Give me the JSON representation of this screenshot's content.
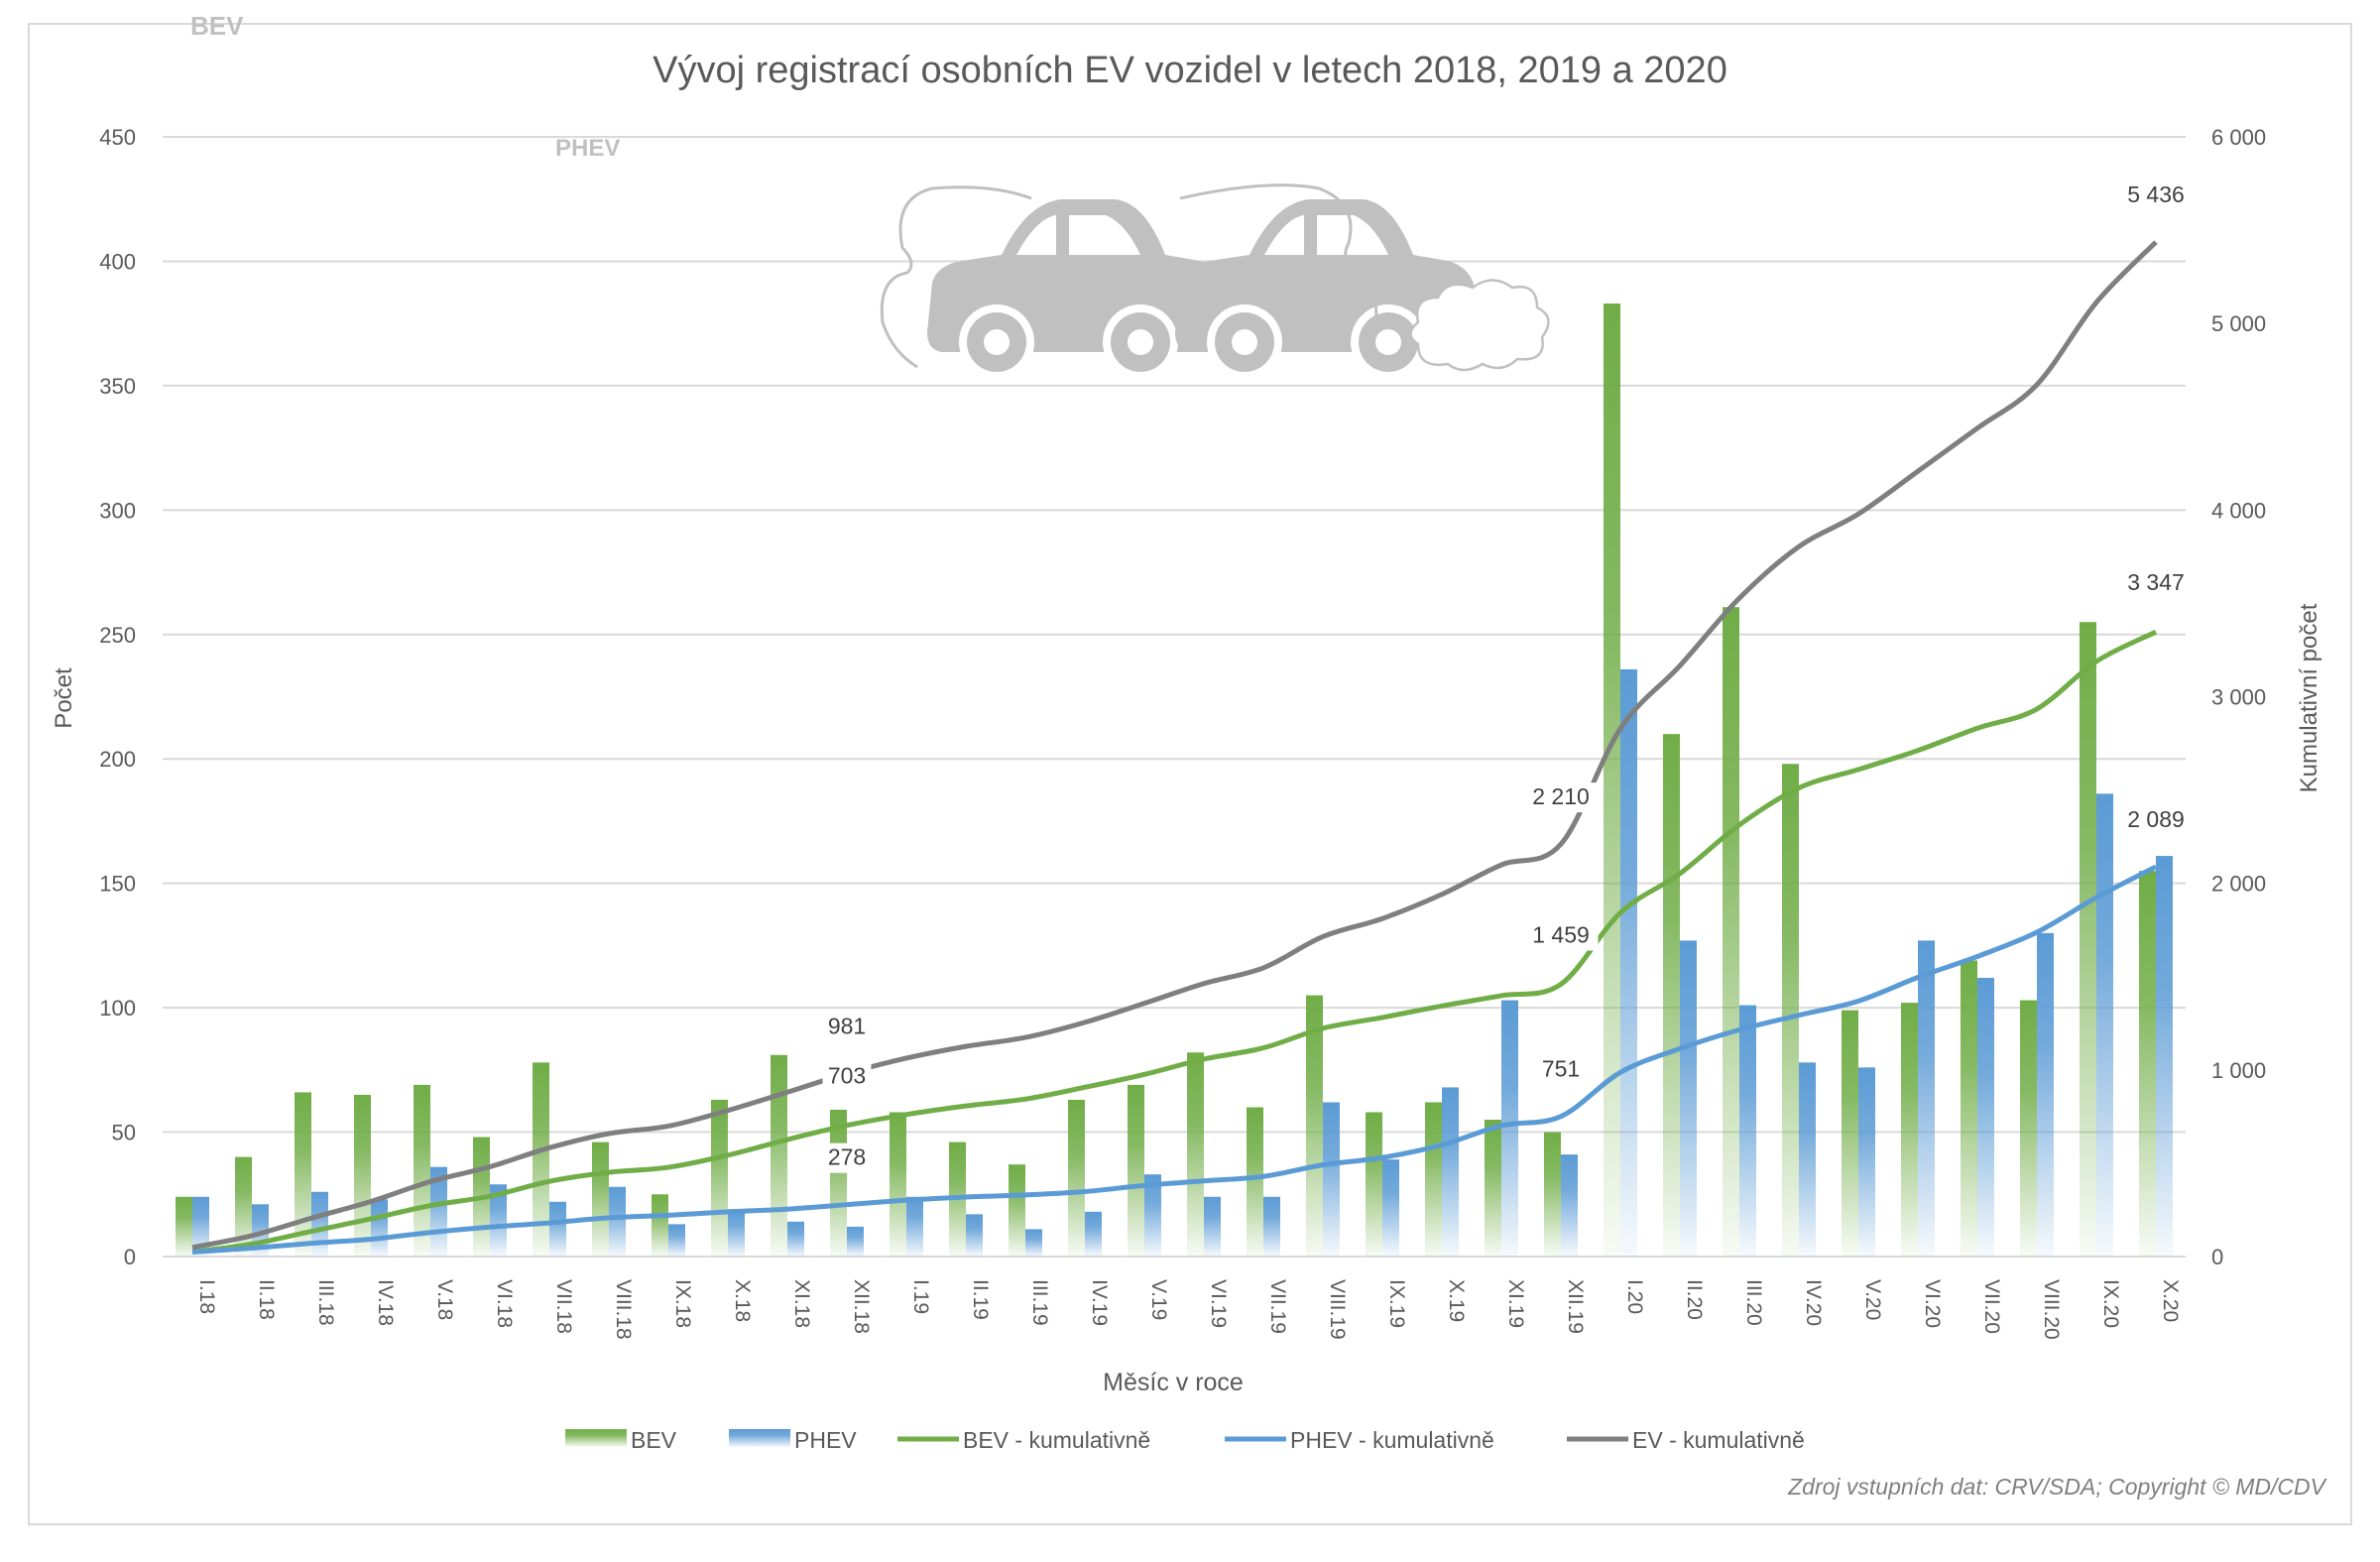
{
  "chart_data": {
    "type": "bar+line",
    "title": "Vývoj registrací osobních EV vozidel v letech 2018, 2019 a 2020",
    "xlabel": "Měsíc v roce",
    "ylabel": "Počet",
    "y2label": "Kumulativní počet",
    "ylim": [
      0,
      450
    ],
    "y2lim": [
      0,
      6000
    ],
    "yticks": [
      "0",
      "50",
      "100",
      "150",
      "200",
      "250",
      "300",
      "350",
      "400",
      "450"
    ],
    "y2ticks": [
      "0",
      "1 000",
      "2 000",
      "3 000",
      "4 000",
      "5 000",
      "6 000"
    ],
    "grid": true,
    "legend_position": "bottom",
    "categories": [
      "I.18",
      "II.18",
      "III.18",
      "IV.18",
      "V.18",
      "VI.18",
      "VII.18",
      "VIII.18",
      "IX.18",
      "X.18",
      "XI.18",
      "XII.18",
      "I.19",
      "II.19",
      "III.19",
      "IV.19",
      "V.19",
      "VI.19",
      "VII.19",
      "VIII.19",
      "IX.19",
      "X.19",
      "XI.19",
      "XII.19",
      "I.20",
      "II.20",
      "III.20",
      "IV.20",
      "V.20",
      "VI.20",
      "VII.20",
      "VIII.20",
      "IX.20",
      "X.20"
    ],
    "series": [
      {
        "name": "BEV",
        "kind": "bar",
        "axis": "left",
        "color": "#70ad47",
        "values": [
          24,
          40,
          66,
          65,
          69,
          48,
          78,
          46,
          25,
          63,
          81,
          59,
          58,
          46,
          37,
          63,
          69,
          82,
          60,
          105,
          58,
          62,
          55,
          50,
          383,
          210,
          261,
          198,
          99,
          102,
          119,
          103,
          255,
          155
        ]
      },
      {
        "name": "PHEV",
        "kind": "bar",
        "axis": "left",
        "color": "#5b9bd5",
        "values": [
          24,
          21,
          26,
          23,
          36,
          29,
          22,
          28,
          13,
          19,
          14,
          12,
          24,
          17,
          11,
          18,
          33,
          24,
          24,
          62,
          39,
          68,
          103,
          41,
          236,
          127,
          101,
          78,
          76,
          127,
          112,
          130,
          186,
          161
        ]
      },
      {
        "name": "BEV - kumulativně",
        "kind": "line",
        "axis": "right",
        "color": "#70ad47",
        "values": [
          25,
          67,
          135,
          202,
          273,
          323,
          403,
          451,
          478,
          543,
          627,
          703,
          761,
          807,
          844,
          907,
          976,
          1058,
          1118,
          1223,
          1281,
          1343,
          1398,
          1459,
          1842,
          2052,
          2313,
          2511,
          2610,
          2712,
          2831,
          2934,
          3189,
          3347
        ],
        "labels": {
          "11": "703",
          "23": "1 459",
          "33": "3 347"
        }
      },
      {
        "name": "PHEV - kumulativně",
        "kind": "line",
        "axis": "right",
        "color": "#5b9bd5",
        "values": [
          24,
          45,
          71,
          93,
          129,
          158,
          180,
          208,
          221,
          240,
          254,
          278,
          302,
          319,
          330,
          348,
          381,
          405,
          429,
          491,
          530,
          598,
          701,
          751,
          987,
          1114,
          1215,
          1293,
          1369,
          1496,
          1608,
          1738,
          1924,
          2089
        ],
        "labels": {
          "11": "278",
          "23": "751",
          "33": "2 089"
        }
      },
      {
        "name": "EV - kumulativně",
        "kind": "line",
        "axis": "right",
        "color": "#7f7f7f",
        "values": [
          49,
          112,
          206,
          295,
          402,
          481,
          583,
          659,
          699,
          783,
          881,
          981,
          1063,
          1126,
          1174,
          1255,
          1357,
          1463,
          1547,
          1714,
          1811,
          1941,
          2099,
          2210,
          2829,
          3166,
          3528,
          3804,
          3979,
          4208,
          4439,
          4672,
          5113,
          5436
        ],
        "labels": {
          "11": "981",
          "23": "2 210",
          "33": "5 436"
        }
      }
    ]
  },
  "logo": {
    "bev_text": "BEV",
    "phev_text": "PHEV"
  },
  "footer": "Zdroj vstupních dat: CRV/SDA; Copyright © MD/CDV"
}
